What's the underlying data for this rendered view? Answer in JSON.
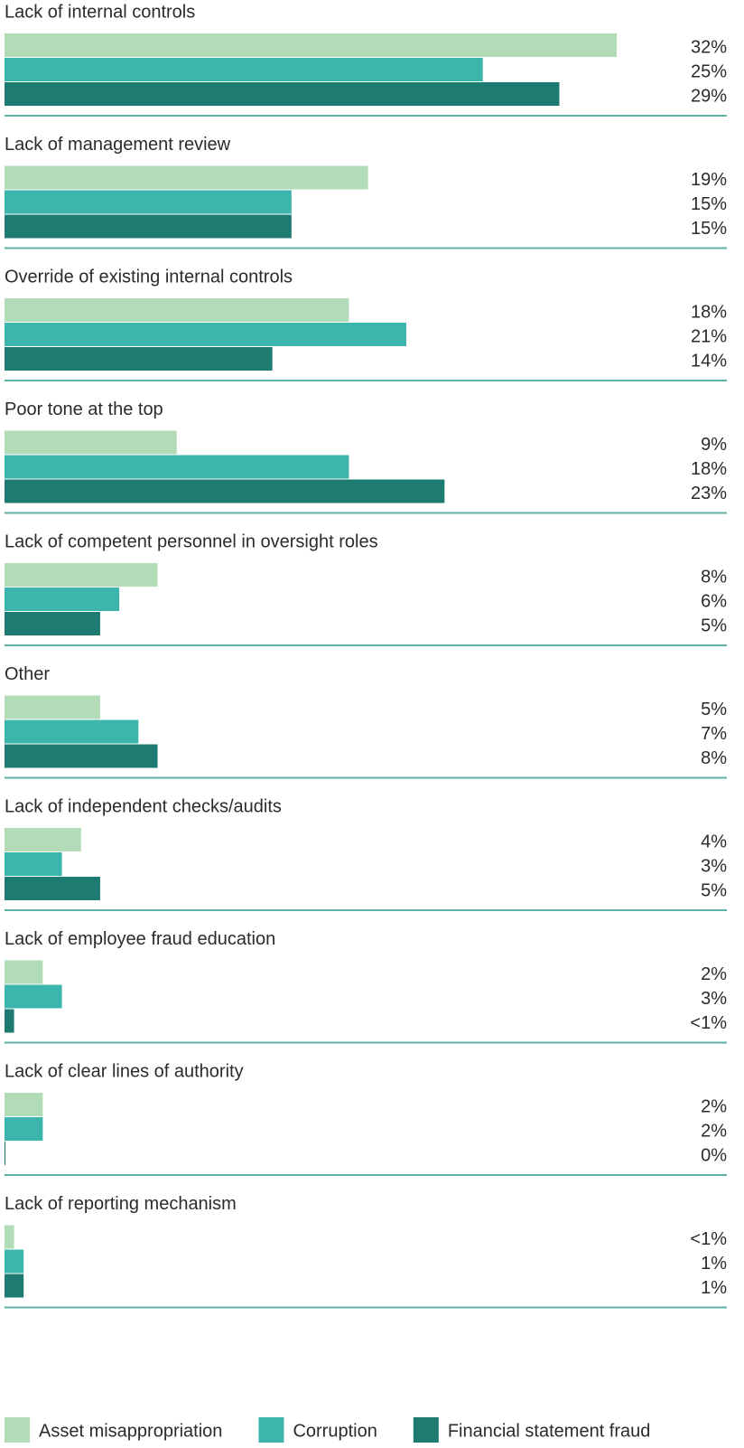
{
  "chart_data": {
    "type": "bar",
    "orientation": "horizontal",
    "categories": [
      "Lack of internal controls",
      "Lack of management review",
      "Override of existing internal controls",
      "Poor tone at the top",
      "Lack of competent personnel in oversight roles",
      "Other",
      "Lack of independent checks/audits",
      "Lack of employee fraud education",
      "Lack of clear lines of authority",
      "Lack of reporting mechanism"
    ],
    "series": [
      {
        "name": "Asset misappropriation",
        "color": "#b2dcb7",
        "values": [
          32,
          19,
          18,
          9,
          8,
          5,
          4,
          2,
          2,
          0.5
        ],
        "value_labels": [
          "32%",
          "19%",
          "18%",
          "9%",
          "8%",
          "5%",
          "4%",
          "2%",
          "2%",
          "<1%"
        ]
      },
      {
        "name": "Corruption",
        "color": "#3cb6ad",
        "values": [
          25,
          15,
          21,
          18,
          6,
          7,
          3,
          3,
          2,
          1
        ],
        "value_labels": [
          "25%",
          "15%",
          "21%",
          "18%",
          "6%",
          "7%",
          "3%",
          "3%",
          "2%",
          "1%"
        ]
      },
      {
        "name": "Financial statement fraud",
        "color": "#1e7b71",
        "values": [
          29,
          15,
          14,
          23,
          5,
          8,
          5,
          0.5,
          0,
          1
        ],
        "value_labels": [
          "29%",
          "15%",
          "14%",
          "23%",
          "5%",
          "8%",
          "5%",
          "<1%",
          "0%",
          "1%"
        ]
      }
    ],
    "xlim": [
      0,
      37
    ],
    "legend": "bottom"
  }
}
